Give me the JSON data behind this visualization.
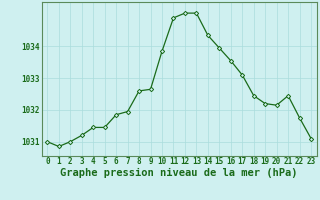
{
  "x": [
    0,
    1,
    2,
    3,
    4,
    5,
    6,
    7,
    8,
    9,
    10,
    11,
    12,
    13,
    14,
    15,
    16,
    17,
    18,
    19,
    20,
    21,
    22,
    23
  ],
  "y": [
    1031.0,
    1030.85,
    1031.0,
    1031.2,
    1031.45,
    1031.45,
    1031.85,
    1031.95,
    1032.6,
    1032.65,
    1033.85,
    1034.9,
    1035.05,
    1035.05,
    1034.35,
    1033.95,
    1033.55,
    1033.1,
    1032.45,
    1032.2,
    1032.15,
    1032.45,
    1031.75,
    1031.1
  ],
  "line_color": "#1a6b1a",
  "marker": "D",
  "marker_size": 2.2,
  "bg_color": "#cff0f0",
  "grid_color": "#aadddd",
  "xlabel": "Graphe pression niveau de la mer (hPa)",
  "xlabel_color": "#1a6b1a",
  "xlabel_fontsize": 7.5,
  "xtick_labels": [
    "0",
    "1",
    "2",
    "3",
    "4",
    "5",
    "6",
    "7",
    "8",
    "9",
    "10",
    "11",
    "12",
    "13",
    "14",
    "15",
    "16",
    "17",
    "18",
    "19",
    "20",
    "21",
    "22",
    "23"
  ],
  "ytick_values": [
    1031,
    1032,
    1033,
    1034
  ],
  "ylim": [
    1030.55,
    1035.4
  ],
  "xlim": [
    -0.5,
    23.5
  ],
  "tick_color": "#1a6b1a",
  "tick_fontsize": 5.5,
  "spine_color": "#5a8a5a"
}
